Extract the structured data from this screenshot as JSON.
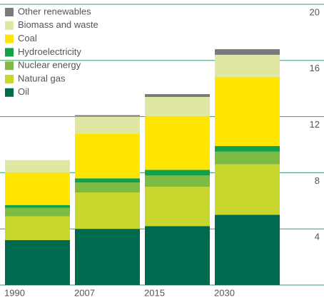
{
  "chart_data": {
    "type": "stacked_bar",
    "categories": [
      "1990",
      "2007",
      "2015",
      "2030"
    ],
    "series": [
      {
        "name": "Oil",
        "color": "#006a4e",
        "values": [
          3.2,
          4.0,
          4.2,
          5.0
        ]
      },
      {
        "name": "Natural gas",
        "color": "#c8d72e",
        "values": [
          1.7,
          2.6,
          2.8,
          3.6
        ]
      },
      {
        "name": "Nuclear energy",
        "color": "#7dbb42",
        "values": [
          0.6,
          0.7,
          0.8,
          0.9
        ]
      },
      {
        "name": "Hydroelectricity",
        "color": "#12a14b",
        "values": [
          0.2,
          0.3,
          0.4,
          0.4
        ]
      },
      {
        "name": "Coal",
        "color": "#ffe500",
        "values": [
          2.3,
          3.2,
          3.8,
          4.9
        ]
      },
      {
        "name": "Biomass and waste",
        "color": "#dfe7a2",
        "values": [
          0.9,
          1.2,
          1.4,
          1.6
        ]
      },
      {
        "name": "Other renewables",
        "color": "#7a7a7a",
        "values": [
          0,
          0.1,
          0.2,
          0.4
        ]
      }
    ],
    "ylim": [
      0,
      20
    ],
    "yticks": [
      4,
      8,
      12,
      16,
      20
    ],
    "grid": true
  }
}
